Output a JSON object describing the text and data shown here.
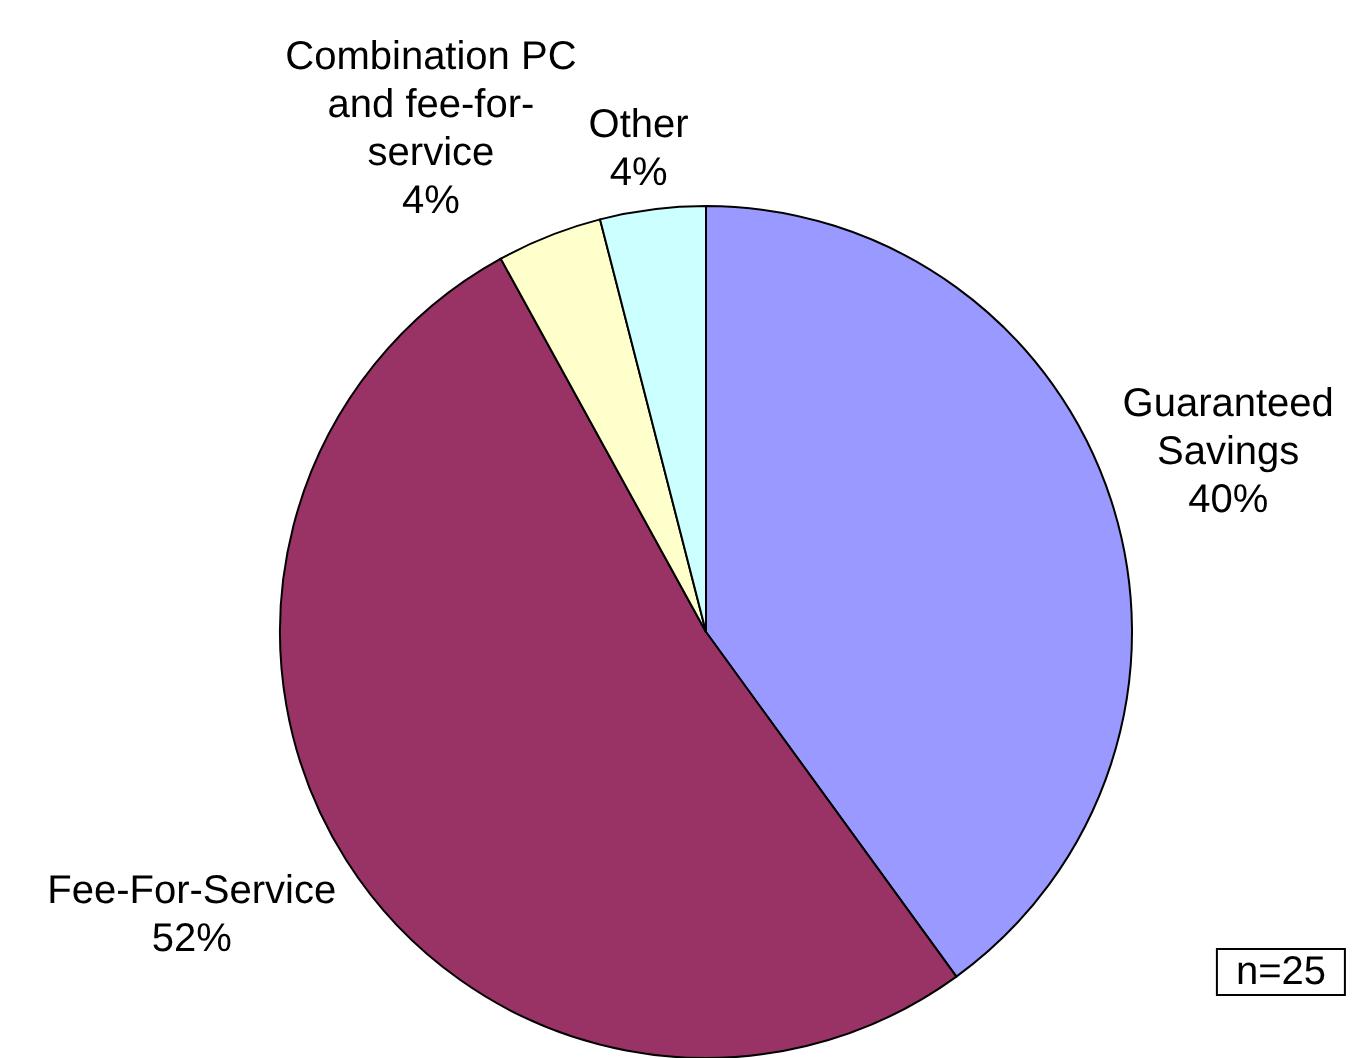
{
  "chart_data": {
    "type": "pie",
    "categories": [
      "Guaranteed Savings",
      "Fee-For-Service",
      "Combination PC and fee-for-service",
      "Other"
    ],
    "values": [
      40,
      52,
      4,
      4
    ],
    "colors": [
      "#9999ff",
      "#993366",
      "#ffffcc",
      "#ccffff"
    ],
    "value_labels": [
      "40%",
      "52%",
      "4%",
      "4%"
    ],
    "legend": false,
    "annotations": [
      "n=25"
    ]
  }
}
